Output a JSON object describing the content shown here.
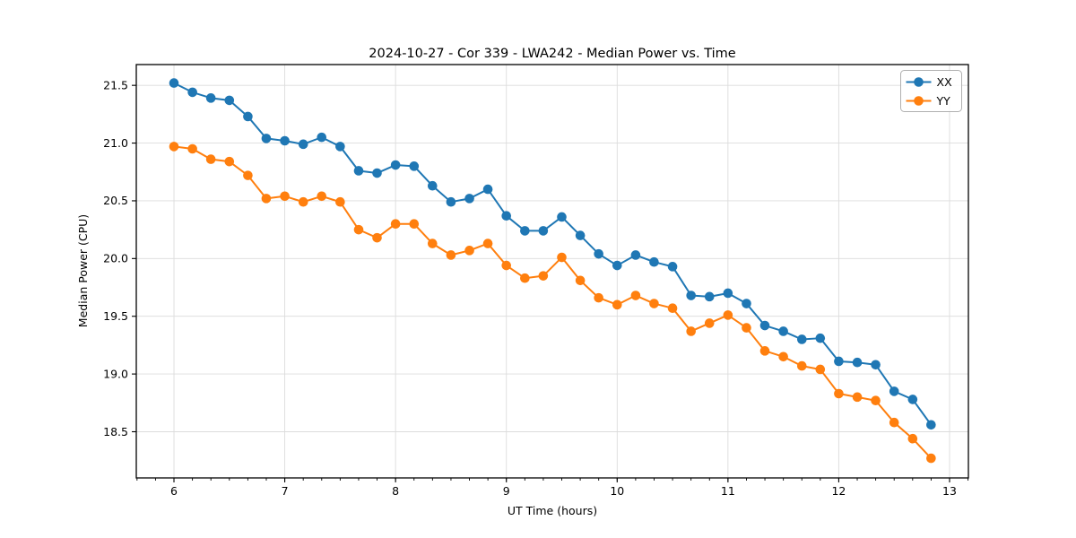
{
  "chart_data": {
    "type": "line",
    "title": "2024-10-27 - Cor 339 - LWA242 - Median Power vs. Time",
    "xlabel": "UT Time (hours)",
    "ylabel": "Median Power (CPU)",
    "xlim": [
      5.66,
      13.17
    ],
    "ylim": [
      18.1,
      21.68
    ],
    "xticks": [
      6,
      7,
      8,
      9,
      10,
      11,
      12,
      13
    ],
    "yticks": [
      18.5,
      19.0,
      19.5,
      20.0,
      20.5,
      21.0,
      21.5
    ],
    "x_minor_step": 0.166667,
    "grid": true,
    "legend_position": "upper right",
    "marker": "circle",
    "x": [
      6.0,
      6.167,
      6.333,
      6.5,
      6.667,
      6.833,
      7.0,
      7.167,
      7.333,
      7.5,
      7.667,
      7.833,
      8.0,
      8.167,
      8.333,
      8.5,
      8.667,
      8.833,
      9.0,
      9.167,
      9.333,
      9.5,
      9.667,
      9.833,
      10.0,
      10.167,
      10.333,
      10.5,
      10.667,
      10.833,
      11.0,
      11.167,
      11.333,
      11.5,
      11.667,
      11.833,
      12.0,
      12.167,
      12.333,
      12.5,
      12.667,
      12.833
    ],
    "series": [
      {
        "name": "XX",
        "color": "#1f77b4",
        "values": [
          21.52,
          21.44,
          21.39,
          21.37,
          21.23,
          21.04,
          21.02,
          20.99,
          21.05,
          20.97,
          20.76,
          20.74,
          20.81,
          20.8,
          20.63,
          20.49,
          20.52,
          20.6,
          20.37,
          20.24,
          20.24,
          20.36,
          20.2,
          20.04,
          19.94,
          20.03,
          19.97,
          19.93,
          19.68,
          19.67,
          19.7,
          19.61,
          19.42,
          19.37,
          19.3,
          19.31,
          19.11,
          19.1,
          19.08,
          18.85,
          18.78,
          18.56
        ]
      },
      {
        "name": "YY",
        "color": "#ff7f0e",
        "values": [
          20.97,
          20.95,
          20.86,
          20.84,
          20.72,
          20.52,
          20.54,
          20.49,
          20.54,
          20.49,
          20.25,
          20.18,
          20.3,
          20.3,
          20.13,
          20.03,
          20.07,
          20.13,
          19.94,
          19.83,
          19.85,
          20.01,
          19.81,
          19.66,
          19.6,
          19.68,
          19.61,
          19.57,
          19.37,
          19.44,
          19.51,
          19.4,
          19.2,
          19.15,
          19.07,
          19.04,
          18.83,
          18.8,
          18.77,
          18.58,
          18.44,
          18.27
        ]
      }
    ]
  },
  "colors": {
    "background": "#ffffff",
    "grid": "#dcdcdc",
    "axis": "#000000",
    "legend_border": "#b0b0b0",
    "series_xx": "#1f77b4",
    "series_yy": "#ff7f0e"
  }
}
